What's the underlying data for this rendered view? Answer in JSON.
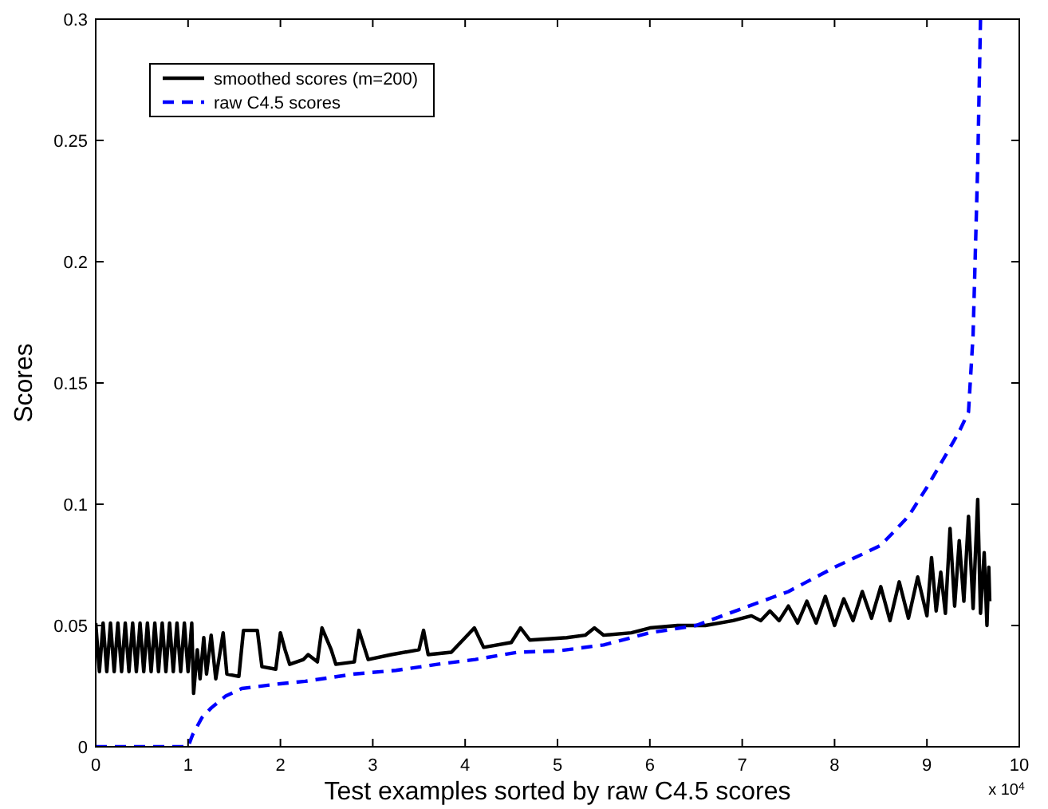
{
  "chart_data": {
    "type": "line",
    "xlabel": "Test examples sorted by raw C4.5 scores",
    "ylabel": "Scores",
    "annotations": [
      "x 10$^{4}$"
    ],
    "xlim": [
      0,
      10
    ],
    "xticks": [
      0,
      1,
      2,
      3,
      4,
      5,
      6,
      7,
      8,
      9,
      10
    ],
    "ylim": [
      0,
      0.3
    ],
    "yticks": [
      0,
      0.05,
      0.1,
      0.15,
      0.2,
      0.25,
      0.3
    ],
    "grid": false,
    "legend": "top left",
    "series": [
      {
        "name": "smoothed scores (m=200)",
        "color": "#000000",
        "line_style": "solid",
        "x": [
          0,
          0.04,
          0.08,
          0.12,
          0.16,
          0.2,
          0.24,
          0.28,
          0.32,
          0.36,
          0.4,
          0.44,
          0.48,
          0.52,
          0.56,
          0.6,
          0.64,
          0.68,
          0.72,
          0.76,
          0.8,
          0.84,
          0.88,
          0.92,
          0.96,
          1.0,
          1.04,
          1.06,
          1.1,
          1.13,
          1.17,
          1.2,
          1.25,
          1.3,
          1.38,
          1.42,
          1.55,
          1.6,
          1.75,
          1.8,
          1.95,
          2.0,
          2.05,
          2.1,
          2.25,
          2.3,
          2.4,
          2.45,
          2.55,
          2.6,
          2.8,
          2.85,
          2.95,
          3.2,
          3.5,
          3.55,
          3.6,
          3.85,
          4.0,
          4.1,
          4.2,
          4.5,
          4.6,
          4.7,
          5.1,
          5.3,
          5.4,
          5.5,
          5.8,
          6.0,
          6.3,
          6.6,
          6.9,
          7.1,
          7.2,
          7.3,
          7.4,
          7.5,
          7.6,
          7.7,
          7.8,
          7.9,
          8.0,
          8.1,
          8.2,
          8.3,
          8.4,
          8.5,
          8.6,
          8.7,
          8.8,
          8.9,
          9.0,
          9.05,
          9.1,
          9.15,
          9.2,
          9.25,
          9.3,
          9.35,
          9.4,
          9.45,
          9.5,
          9.55,
          9.58,
          9.62,
          9.65,
          9.67,
          9.68
        ],
        "values": [
          0.051,
          0.031,
          0.051,
          0.031,
          0.051,
          0.031,
          0.051,
          0.031,
          0.051,
          0.031,
          0.051,
          0.031,
          0.051,
          0.031,
          0.051,
          0.031,
          0.051,
          0.031,
          0.051,
          0.031,
          0.051,
          0.031,
          0.051,
          0.031,
          0.051,
          0.031,
          0.051,
          0.022,
          0.04,
          0.028,
          0.045,
          0.03,
          0.046,
          0.028,
          0.047,
          0.03,
          0.029,
          0.048,
          0.048,
          0.033,
          0.032,
          0.047,
          0.04,
          0.034,
          0.036,
          0.038,
          0.035,
          0.049,
          0.04,
          0.034,
          0.035,
          0.048,
          0.036,
          0.038,
          0.04,
          0.048,
          0.038,
          0.039,
          0.045,
          0.049,
          0.041,
          0.043,
          0.049,
          0.044,
          0.045,
          0.046,
          0.049,
          0.046,
          0.047,
          0.049,
          0.05,
          0.05,
          0.052,
          0.054,
          0.052,
          0.056,
          0.052,
          0.058,
          0.051,
          0.06,
          0.051,
          0.062,
          0.05,
          0.061,
          0.052,
          0.064,
          0.053,
          0.066,
          0.052,
          0.068,
          0.053,
          0.07,
          0.054,
          0.078,
          0.056,
          0.072,
          0.055,
          0.09,
          0.058,
          0.085,
          0.06,
          0.095,
          0.057,
          0.102,
          0.055,
          0.08,
          0.05,
          0.074,
          0.06
        ]
      },
      {
        "name": "raw C4.5 scores",
        "color": "#0000ff",
        "line_style": "dashed",
        "x": [
          0,
          1.0,
          1.05,
          1.15,
          1.25,
          1.41,
          1.58,
          2.0,
          2.27,
          2.8,
          3.25,
          3.7,
          4.11,
          4.57,
          5.0,
          5.5,
          6.0,
          6.5,
          7.0,
          7.5,
          8.0,
          8.5,
          8.8,
          9.0,
          9.2,
          9.35,
          9.45,
          9.5,
          9.55,
          9.58
        ],
        "values": [
          0,
          0,
          0.005,
          0.012,
          0.016,
          0.021,
          0.024,
          0.026,
          0.027,
          0.03,
          0.0315,
          0.034,
          0.036,
          0.039,
          0.0395,
          0.042,
          0.047,
          0.05,
          0.057,
          0.064,
          0.074,
          0.083,
          0.095,
          0.107,
          0.12,
          0.13,
          0.138,
          0.17,
          0.24,
          0.3
        ]
      }
    ]
  }
}
